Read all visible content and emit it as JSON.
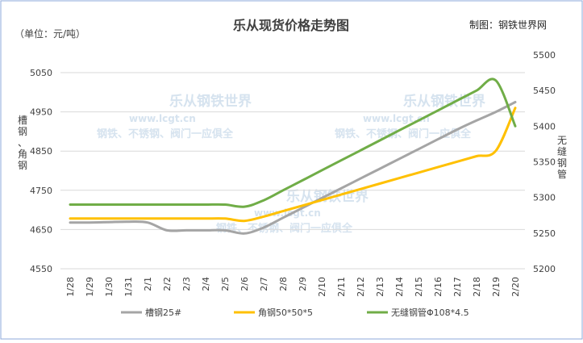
{
  "colors": {
    "border": "#8eaadb",
    "grid": "#d9d9d9",
    "text": "#404040",
    "title": "#404040",
    "watermark": "#d6e3ef"
  },
  "chart_data": {
    "type": "line",
    "title": "乐从现货价格走势图",
    "unit_note": "（单位：元/吨）",
    "credit": "制图：钢铁世界网",
    "watermark": {
      "brand": "乐从钢铁世界",
      "url": "www.lcgt.cn",
      "slogan": "钢铁、不锈钢、阀门一应俱全"
    },
    "y_left_label": "槽钢、角钢",
    "y_right_label": "无缝钢管",
    "x": [
      "1/28",
      "1/29",
      "1/30",
      "1/31",
      "2/1",
      "2/2",
      "2/3",
      "2/4",
      "2/5",
      "2/6",
      "2/7",
      "2/8",
      "2/9",
      "2/10",
      "2/11",
      "2/12",
      "2/13",
      "2/14",
      "2/15",
      "2/16",
      "2/17",
      "2/18",
      "2/19",
      "2/20"
    ],
    "y_left": {
      "min": 4550,
      "max": 5050,
      "ticks": [
        4550,
        4650,
        4750,
        4850,
        4950,
        5050
      ]
    },
    "y_right": {
      "min": 5200,
      "max": 5500,
      "ticks": [
        5200,
        5250,
        5300,
        5350,
        5400,
        5450,
        5500
      ]
    },
    "series": [
      {
        "name": "槽钢25#",
        "axis": "left",
        "color": "#a5a5a5",
        "values": [
          4668,
          4668,
          4669,
          4670,
          4668,
          4648,
          4648,
          4648,
          4648,
          4640,
          4655,
          4680,
          4705,
          4730,
          4755,
          4780,
          4805,
          4830,
          4855,
          4880,
          4905,
          4928,
          4950,
          4975
        ]
      },
      {
        "name": "角钢50*50*5",
        "axis": "left",
        "color": "#ffc000",
        "values": [
          4678,
          4678,
          4678,
          4678,
          4678,
          4678,
          4678,
          4678,
          4678,
          4672,
          4683,
          4697,
          4711,
          4725,
          4739,
          4753,
          4767,
          4781,
          4795,
          4809,
          4823,
          4837,
          4851,
          4960
        ]
      },
      {
        "name": "无缝钢管Φ108*4.5",
        "axis": "right",
        "color": "#70ad47",
        "values": [
          5290,
          5290,
          5290,
          5290,
          5290,
          5290,
          5290,
          5290,
          5290,
          5287,
          5296,
          5310,
          5324,
          5338,
          5352,
          5366,
          5380,
          5394,
          5408,
          5422,
          5436,
          5450,
          5464,
          5400
        ]
      }
    ]
  }
}
